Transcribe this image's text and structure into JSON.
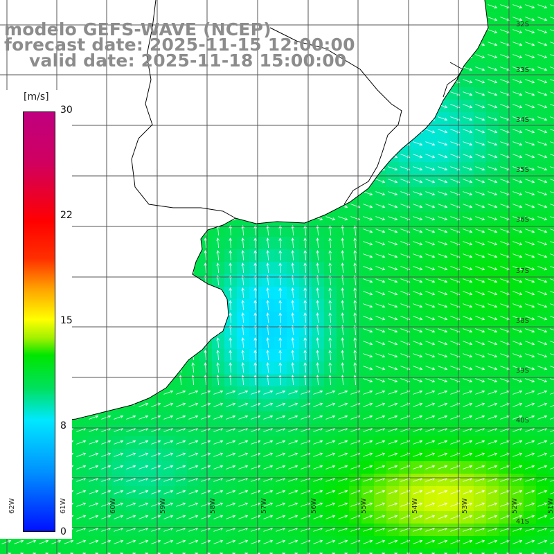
{
  "titles": {
    "line1": "modelo GEFS-WAVE (NCEP)",
    "line2": "forecast date: 2025-11-15 12:00:00",
    "line3": "valid date: 2025-11-18 15:00:00"
  },
  "colorbar": {
    "unit": "[m/s]",
    "min": 0,
    "max": 30,
    "ticks": [
      "0",
      "8",
      "15",
      "22",
      "30"
    ]
  },
  "lat_labels": [
    "32S",
    "33S",
    "34S",
    "35S",
    "36S",
    "37S",
    "38S",
    "39S",
    "40S",
    "41S"
  ],
  "lon_labels": [
    "62W",
    "61W",
    "60W",
    "59W",
    "58W",
    "57W",
    "56W",
    "55W",
    "54W",
    "53W",
    "52W",
    "51W"
  ],
  "colors": {
    "land": "#ffffff",
    "grid": "#555555",
    "coast": "#000000",
    "arrow": "#ffffff"
  },
  "map_data": {
    "variable": "wind speed",
    "units": "m/s",
    "region": "Rio de la Plata / South Atlantic"
  }
}
